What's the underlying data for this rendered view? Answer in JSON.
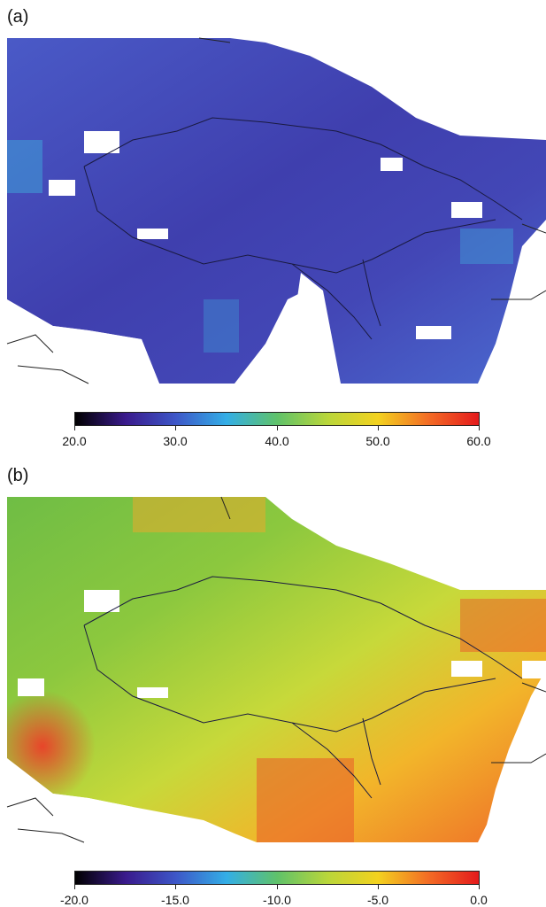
{
  "panels": [
    {
      "label": "(a)",
      "colorbar": {
        "ticks": [
          "20.0",
          "30.0",
          "40.0",
          "50.0",
          "60.0"
        ],
        "range": [
          20,
          60
        ],
        "stops": [
          "#000000",
          "#3a1a8c",
          "#3d57c8",
          "#33aee6",
          "#5fc26a",
          "#b9d63a",
          "#f3d21f",
          "#f36c25",
          "#e41a1c"
        ]
      },
      "field": {
        "base_color": "#4548b8",
        "accent_colors": [
          "#3c3ea8",
          "#4b5bc4",
          "#3f9ad6",
          "#5f4ab8"
        ]
      }
    },
    {
      "label": "(b)",
      "colorbar": {
        "ticks": [
          "-20.0",
          "-15.0",
          "-10.0",
          "-5.0",
          "0.0"
        ],
        "range": [
          -20,
          0
        ],
        "stops": [
          "#000000",
          "#3a1a8c",
          "#3d57c8",
          "#33aee6",
          "#5fc26a",
          "#b9d63a",
          "#f3d21f",
          "#f36c25",
          "#e41a1c"
        ]
      },
      "field": {
        "base_color": "#9ccd3b",
        "accent_colors": [
          "#7dbf3e",
          "#c8d93a",
          "#f1c12a",
          "#f28a2c",
          "#e8452a"
        ]
      }
    }
  ]
}
